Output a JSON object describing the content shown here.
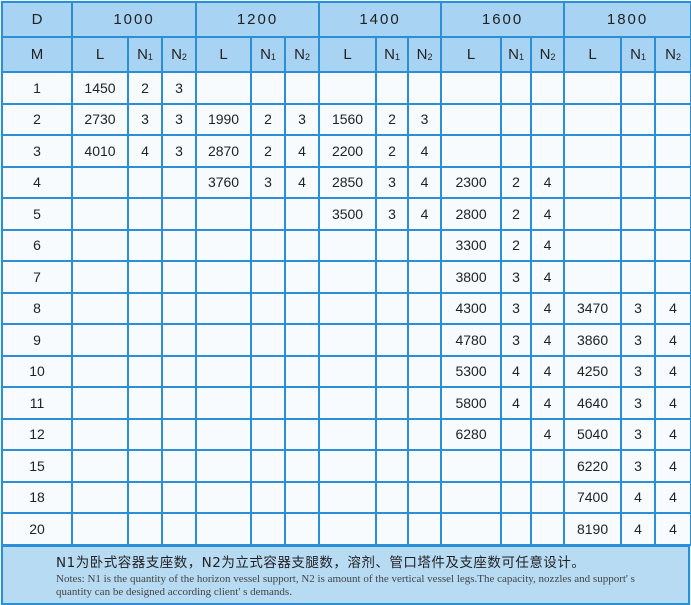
{
  "header": {
    "d_label": "D",
    "m_label": "M",
    "diameters": [
      "1000",
      "1200",
      "1400",
      "1600",
      "1800"
    ],
    "sub_l": "L",
    "sub_n1": "N",
    "sub_n2": "N",
    "n1_sub": "1",
    "n2_sub": "2"
  },
  "rows": [
    {
      "m": "1",
      "cells": [
        "1450",
        "2",
        "3",
        "",
        "",
        "",
        "",
        "",
        "",
        "",
        "",
        "",
        "",
        "",
        ""
      ]
    },
    {
      "m": "2",
      "cells": [
        "2730",
        "3",
        "3",
        "1990",
        "2",
        "3",
        "1560",
        "2",
        "3",
        "",
        "",
        "",
        "",
        "",
        ""
      ]
    },
    {
      "m": "3",
      "cells": [
        "4010",
        "4",
        "3",
        "2870",
        "2",
        "4",
        "2200",
        "2",
        "4",
        "",
        "",
        "",
        "",
        "",
        ""
      ]
    },
    {
      "m": "4",
      "cells": [
        "",
        "",
        "",
        "3760",
        "3",
        "4",
        "2850",
        "3",
        "4",
        "2300",
        "2",
        "4",
        "",
        "",
        ""
      ]
    },
    {
      "m": "5",
      "cells": [
        "",
        "",
        "",
        "",
        "",
        "",
        "3500",
        "3",
        "4",
        "2800",
        "2",
        "4",
        "",
        "",
        ""
      ]
    },
    {
      "m": "6",
      "cells": [
        "",
        "",
        "",
        "",
        "",
        "",
        "",
        "",
        "",
        "3300",
        "2",
        "4",
        "",
        "",
        ""
      ]
    },
    {
      "m": "7",
      "cells": [
        "",
        "",
        "",
        "",
        "",
        "",
        "",
        "",
        "",
        "3800",
        "3",
        "4",
        "",
        "",
        ""
      ]
    },
    {
      "m": "8",
      "cells": [
        "",
        "",
        "",
        "",
        "",
        "",
        "",
        "",
        "",
        "4300",
        "3",
        "4",
        "3470",
        "3",
        "4"
      ]
    },
    {
      "m": "9",
      "cells": [
        "",
        "",
        "",
        "",
        "",
        "",
        "",
        "",
        "",
        "4780",
        "3",
        "4",
        "3860",
        "3",
        "4"
      ]
    },
    {
      "m": "10",
      "cells": [
        "",
        "",
        "",
        "",
        "",
        "",
        "",
        "",
        "",
        "5300",
        "4",
        "4",
        "4250",
        "3",
        "4"
      ]
    },
    {
      "m": "11",
      "cells": [
        "",
        "",
        "",
        "",
        "",
        "",
        "",
        "",
        "",
        "5800",
        "4",
        "4",
        "4640",
        "3",
        "4"
      ]
    },
    {
      "m": "12",
      "cells": [
        "",
        "",
        "",
        "",
        "",
        "",
        "",
        "",
        "",
        "6280",
        "",
        "4",
        "5040",
        "3",
        "4"
      ]
    },
    {
      "m": "15",
      "cells": [
        "",
        "",
        "",
        "",
        "",
        "",
        "",
        "",
        "",
        "",
        "",
        "",
        "6220",
        "3",
        "4"
      ]
    },
    {
      "m": "18",
      "cells": [
        "",
        "",
        "",
        "",
        "",
        "",
        "",
        "",
        "",
        "",
        "",
        "",
        "7400",
        "4",
        "4"
      ]
    },
    {
      "m": "20",
      "cells": [
        "",
        "",
        "",
        "",
        "",
        "",
        "",
        "",
        "",
        "",
        "",
        "",
        "8190",
        "4",
        "4"
      ]
    }
  ],
  "footer": {
    "cn": "N1为卧式容器支座数，N2为立式容器支腿数，溶剂、管口塔件及支座数可任意设计。",
    "en": "Notes: N1 is the quantity of the horizon vessel support, N2 is amount of the vertical vessel legs.The capacity, nozzles and support' s quantity can be designed according client' s demands."
  },
  "colors": {
    "border": "#2a8fd6",
    "header_bg": "#a9d3f2",
    "footer_bg": "#b7dbf3"
  }
}
